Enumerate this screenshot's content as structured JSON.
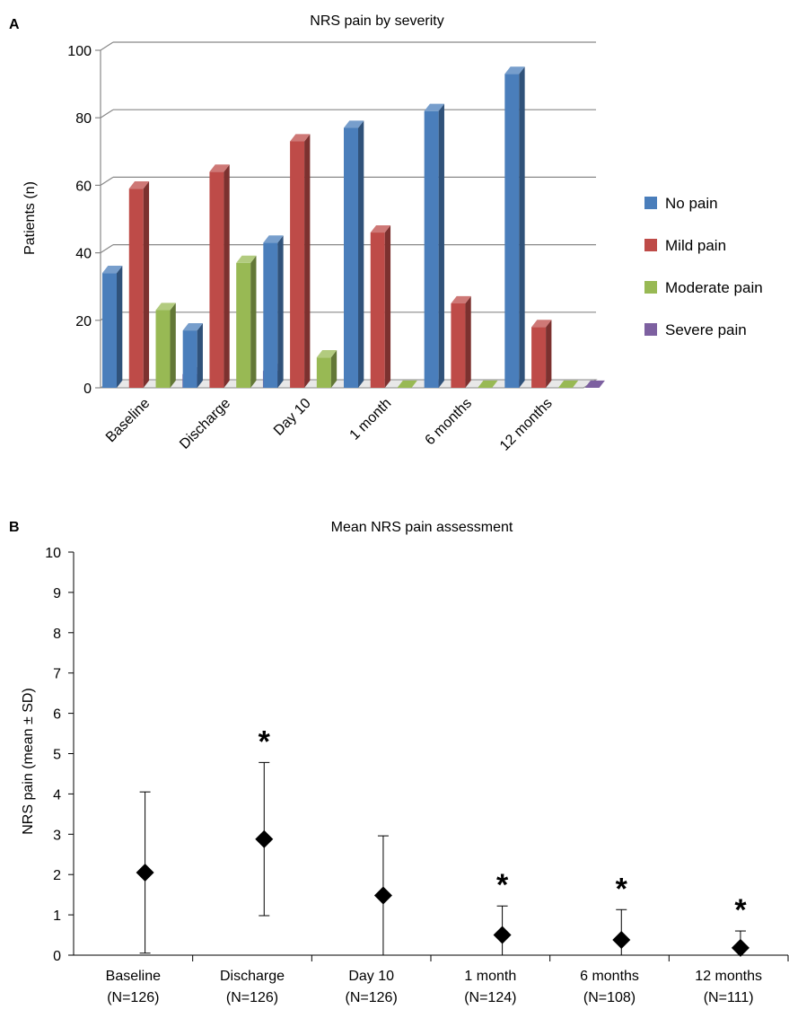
{
  "chart_data": [
    {
      "panel": "A",
      "type": "bar",
      "title": "NRS pain by severity",
      "ylabel": "Patients (n)",
      "xlabel": "",
      "ylim": [
        0,
        100
      ],
      "yticks": [
        0,
        20,
        40,
        60,
        80,
        100
      ],
      "categories": [
        "Baseline",
        "Discharge",
        "Day 10",
        "1 month",
        "6 months",
        "12 months"
      ],
      "series": [
        {
          "name": "No pain",
          "color": "#4a7ebb",
          "values": [
            34,
            17,
            43,
            77,
            82,
            93
          ]
        },
        {
          "name": "Mild pain",
          "color": "#be4b48",
          "values": [
            59,
            64,
            73,
            46,
            25,
            18
          ]
        },
        {
          "name": "Moderate pain",
          "color": "#98b954",
          "values": [
            23,
            37,
            9,
            0,
            0,
            0
          ]
        },
        {
          "name": "Severe pain",
          "color": "#7d60a0",
          "values": [
            4,
            5,
            0,
            0,
            0,
            0
          ]
        }
      ],
      "legend": "right",
      "grid": true
    },
    {
      "panel": "B",
      "type": "scatter",
      "title": "Mean NRS pain assessment",
      "ylabel": "NRS pain (mean ± SD)",
      "xlabel": "",
      "ylim": [
        0,
        10
      ],
      "yticks": [
        0,
        1,
        2,
        3,
        4,
        5,
        6,
        7,
        8,
        9,
        10
      ],
      "categories": [
        {
          "label": "Baseline",
          "n": "(N=126)"
        },
        {
          "label": "Discharge",
          "n": "(N=126)"
        },
        {
          "label": "Day 10",
          "n": "(N=126)"
        },
        {
          "label": "1 month",
          "n": "(N=124)"
        },
        {
          "label": "6 months",
          "n": "(N=108)"
        },
        {
          "label": "12 months",
          "n": "(N=111)"
        }
      ],
      "mean": [
        2.05,
        2.88,
        1.48,
        0.5,
        0.38,
        0.18
      ],
      "sd": [
        2.0,
        1.9,
        1.48,
        0.72,
        0.75,
        0.42
      ],
      "significant": [
        false,
        true,
        false,
        true,
        true,
        true
      ],
      "significance_marker": "*",
      "marker": "diamond"
    }
  ]
}
